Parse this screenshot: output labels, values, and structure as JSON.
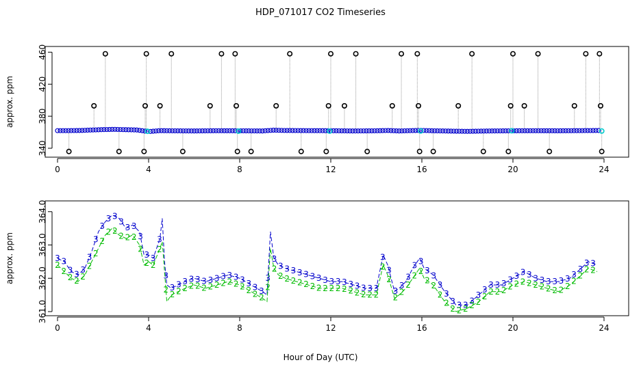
{
  "title": "HDP_071017  CO2 Timeseries",
  "xlabel": "Hour of Day (UTC)",
  "colors": {
    "black": "#000000",
    "blue": "#0000cc",
    "green": "#00bb00",
    "cyan": "#00cccc",
    "gray": "#999999"
  },
  "chart_data": [
    {
      "type": "scatter",
      "ylabel": "approx. ppm",
      "xlim": [
        0,
        24
      ],
      "ylim": [
        334,
        462
      ],
      "xticks": [
        "0",
        "4",
        "8",
        "12",
        "16",
        "20",
        "24"
      ],
      "xtick_values": [
        0,
        4,
        8,
        12,
        16,
        20,
        24
      ],
      "yticks": [
        "340",
        "380",
        "420",
        "460"
      ],
      "ytick_values": [
        340,
        380,
        420,
        460
      ],
      "series": [
        {
          "marker": "circle-blue",
          "baseline": [
            [
              0.0,
              362.0
            ],
            [
              0.5,
              362.0
            ],
            [
              1.0,
              362.2
            ],
            [
              1.5,
              362.8
            ],
            [
              2.0,
              363.3
            ],
            [
              2.5,
              363.6
            ],
            [
              3.0,
              363.2
            ],
            [
              3.5,
              362.8
            ],
            [
              4.0,
              360.8
            ],
            [
              4.5,
              362.0
            ],
            [
              5.0,
              361.8
            ],
            [
              6.0,
              361.6
            ],
            [
              7.0,
              361.9
            ],
            [
              8.0,
              361.8
            ],
            [
              9.0,
              361.6
            ],
            [
              9.5,
              362.6
            ],
            [
              10.0,
              362.2
            ],
            [
              11.0,
              362.0
            ],
            [
              12.0,
              361.9
            ],
            [
              13.0,
              361.6
            ],
            [
              14.0,
              361.8
            ],
            [
              14.5,
              362.2
            ],
            [
              15.0,
              361.6
            ],
            [
              15.5,
              362.0
            ],
            [
              16.0,
              362.3
            ],
            [
              16.5,
              361.8
            ],
            [
              17.0,
              361.6
            ],
            [
              17.5,
              361.3
            ],
            [
              18.0,
              361.1
            ],
            [
              19.0,
              361.6
            ],
            [
              20.0,
              361.8
            ],
            [
              21.0,
              361.9
            ],
            [
              22.0,
              361.8
            ],
            [
              23.0,
              362.0
            ],
            [
              23.8,
              362.2
            ]
          ]
        },
        {
          "marker": "circle-black",
          "outliers": [
            [
              0.5,
              336
            ],
            [
              1.6,
              393
            ],
            [
              2.1,
              458
            ],
            [
              2.7,
              336
            ],
            [
              3.8,
              336
            ],
            [
              3.85,
              393
            ],
            [
              3.9,
              458
            ],
            [
              4.5,
              393
            ],
            [
              5.0,
              458
            ],
            [
              5.5,
              336
            ],
            [
              6.7,
              393
            ],
            [
              7.2,
              458
            ],
            [
              7.8,
              458
            ],
            [
              7.85,
              393
            ],
            [
              7.9,
              336
            ],
            [
              8.5,
              336
            ],
            [
              9.6,
              393
            ],
            [
              10.2,
              458
            ],
            [
              10.7,
              336
            ],
            [
              11.8,
              336
            ],
            [
              11.9,
              393
            ],
            [
              12.0,
              458
            ],
            [
              12.6,
              393
            ],
            [
              13.1,
              458
            ],
            [
              13.6,
              336
            ],
            [
              14.7,
              393
            ],
            [
              15.1,
              458
            ],
            [
              15.8,
              458
            ],
            [
              15.85,
              393
            ],
            [
              15.9,
              336
            ],
            [
              16.5,
              336
            ],
            [
              17.6,
              393
            ],
            [
              18.2,
              458
            ],
            [
              18.7,
              336
            ],
            [
              19.8,
              336
            ],
            [
              19.9,
              393
            ],
            [
              20.0,
              458
            ],
            [
              20.5,
              393
            ],
            [
              21.1,
              458
            ],
            [
              21.6,
              336
            ],
            [
              22.7,
              393
            ],
            [
              23.2,
              458
            ],
            [
              23.8,
              458
            ],
            [
              23.85,
              393
            ],
            [
              23.9,
              336
            ]
          ]
        },
        {
          "marker": "circle-cyan",
          "points": [
            [
              3.95,
              361.2
            ],
            [
              7.95,
              361.4
            ],
            [
              11.95,
              361.4
            ],
            [
              15.95,
              361.6
            ],
            [
              19.95,
              361.8
            ],
            [
              23.9,
              361.5
            ]
          ]
        }
      ]
    },
    {
      "type": "line",
      "ylabel": "approx. ppm",
      "xlim": [
        0,
        24
      ],
      "ylim": [
        361.0,
        364.2
      ],
      "xticks": [
        "0",
        "4",
        "8",
        "12",
        "16",
        "20",
        "24"
      ],
      "xtick_values": [
        0,
        4,
        8,
        12,
        16,
        20,
        24
      ],
      "yticks": [
        "361.0",
        "362.0",
        "363.0",
        "364.0"
      ],
      "ytick_values": [
        361.0,
        362.0,
        363.0,
        364.0
      ],
      "series": [
        {
          "label_char": "3",
          "color": "blue",
          "points": [
            [
              0.0,
              362.6
            ],
            [
              0.3,
              362.5
            ],
            [
              0.6,
              362.2
            ],
            [
              0.9,
              362.1
            ],
            [
              1.2,
              362.3
            ],
            [
              1.5,
              362.8
            ],
            [
              1.8,
              363.4
            ],
            [
              2.1,
              363.7
            ],
            [
              2.4,
              363.9
            ],
            [
              2.7,
              363.8
            ],
            [
              3.0,
              363.5
            ],
            [
              3.3,
              363.6
            ],
            [
              3.6,
              363.4
            ],
            [
              3.8,
              362.7
            ],
            [
              4.0,
              362.7
            ],
            [
              4.2,
              362.6
            ],
            [
              4.5,
              363.2
            ],
            [
              4.6,
              363.8
            ],
            [
              4.7,
              362.5
            ],
            [
              4.8,
              361.8
            ],
            [
              5.0,
              361.7
            ],
            [
              5.3,
              361.8
            ],
            [
              5.6,
              361.9
            ],
            [
              6.0,
              362.0
            ],
            [
              6.5,
              361.9
            ],
            [
              7.0,
              362.0
            ],
            [
              7.5,
              362.1
            ],
            [
              8.0,
              362.0
            ],
            [
              8.5,
              361.8
            ],
            [
              9.0,
              361.6
            ],
            [
              9.2,
              361.5
            ],
            [
              9.35,
              363.4
            ],
            [
              9.5,
              362.6
            ],
            [
              9.7,
              362.4
            ],
            [
              10.0,
              362.3
            ],
            [
              10.5,
              362.2
            ],
            [
              11.0,
              362.1
            ],
            [
              11.5,
              362.0
            ],
            [
              12.0,
              361.9
            ],
            [
              12.5,
              361.9
            ],
            [
              13.0,
              361.8
            ],
            [
              13.5,
              361.7
            ],
            [
              14.0,
              361.7
            ],
            [
              14.3,
              362.7
            ],
            [
              14.5,
              362.4
            ],
            [
              14.8,
              361.6
            ],
            [
              15.0,
              361.7
            ],
            [
              15.3,
              361.9
            ],
            [
              15.6,
              362.3
            ],
            [
              15.9,
              362.6
            ],
            [
              16.1,
              362.3
            ],
            [
              16.5,
              362.1
            ],
            [
              17.0,
              361.6
            ],
            [
              17.5,
              361.2
            ],
            [
              18.0,
              361.2
            ],
            [
              18.5,
              361.5
            ],
            [
              19.0,
              361.8
            ],
            [
              19.5,
              361.8
            ],
            [
              20.0,
              362.0
            ],
            [
              20.5,
              362.2
            ],
            [
              21.0,
              362.0
            ],
            [
              21.5,
              361.9
            ],
            [
              22.0,
              361.9
            ],
            [
              22.5,
              362.0
            ],
            [
              23.0,
              362.3
            ],
            [
              23.3,
              362.5
            ],
            [
              23.7,
              362.4
            ]
          ]
        },
        {
          "label_char": "2",
          "color": "green",
          "points": [
            [
              0.0,
              362.4
            ],
            [
              0.3,
              362.2
            ],
            [
              0.6,
              362.0
            ],
            [
              0.9,
              361.9
            ],
            [
              1.2,
              362.1
            ],
            [
              1.5,
              362.5
            ],
            [
              1.8,
              362.9
            ],
            [
              2.1,
              363.3
            ],
            [
              2.4,
              363.5
            ],
            [
              2.7,
              363.3
            ],
            [
              3.0,
              363.2
            ],
            [
              3.3,
              363.3
            ],
            [
              3.6,
              363.0
            ],
            [
              3.8,
              362.4
            ],
            [
              4.0,
              362.5
            ],
            [
              4.2,
              362.4
            ],
            [
              4.5,
              362.9
            ],
            [
              4.6,
              363.1
            ],
            [
              4.7,
              362.2
            ],
            [
              4.8,
              361.3
            ],
            [
              5.0,
              361.5
            ],
            [
              5.3,
              361.6
            ],
            [
              5.6,
              361.7
            ],
            [
              6.0,
              361.8
            ],
            [
              6.5,
              361.7
            ],
            [
              7.0,
              361.8
            ],
            [
              7.5,
              361.9
            ],
            [
              8.0,
              361.8
            ],
            [
              8.5,
              361.6
            ],
            [
              9.0,
              361.4
            ],
            [
              9.2,
              361.3
            ],
            [
              9.35,
              362.9
            ],
            [
              9.5,
              362.3
            ],
            [
              9.7,
              362.1
            ],
            [
              10.0,
              362.0
            ],
            [
              10.5,
              361.9
            ],
            [
              11.0,
              361.8
            ],
            [
              11.5,
              361.7
            ],
            [
              12.0,
              361.7
            ],
            [
              12.5,
              361.7
            ],
            [
              13.0,
              361.6
            ],
            [
              13.5,
              361.5
            ],
            [
              14.0,
              361.5
            ],
            [
              14.3,
              362.4
            ],
            [
              14.5,
              362.1
            ],
            [
              14.8,
              361.4
            ],
            [
              15.0,
              361.5
            ],
            [
              15.3,
              361.7
            ],
            [
              15.6,
              362.0
            ],
            [
              15.9,
              362.3
            ],
            [
              16.1,
              362.0
            ],
            [
              16.5,
              361.8
            ],
            [
              17.0,
              361.3
            ],
            [
              17.5,
              361.0
            ],
            [
              18.0,
              361.1
            ],
            [
              18.5,
              361.3
            ],
            [
              19.0,
              361.6
            ],
            [
              19.5,
              361.6
            ],
            [
              20.0,
              361.8
            ],
            [
              20.5,
              361.9
            ],
            [
              21.0,
              361.8
            ],
            [
              21.5,
              361.7
            ],
            [
              22.0,
              361.6
            ],
            [
              22.5,
              361.8
            ],
            [
              23.0,
              362.1
            ],
            [
              23.3,
              362.3
            ],
            [
              23.7,
              362.2
            ]
          ]
        }
      ]
    }
  ]
}
